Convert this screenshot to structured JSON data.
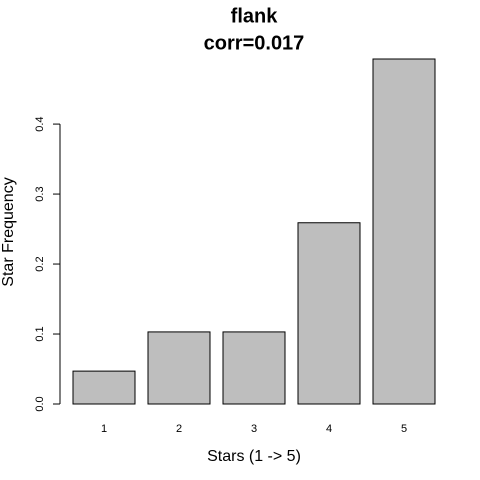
{
  "chart_data": {
    "type": "bar",
    "title": "flank",
    "subtitle": "corr=0.017",
    "x_label": "Stars (1 -> 5)",
    "y_label": "Star Frequency",
    "categories": [
      "1",
      "2",
      "3",
      "4",
      "5"
    ],
    "values": [
      0.047,
      0.103,
      0.103,
      0.259,
      0.493
    ],
    "color": "#bebebe",
    "ylim": [
      0,
      0.493
    ],
    "yticks": [
      {
        "value": 0,
        "label": "0.0"
      },
      0.1,
      0.2,
      0.3,
      0.4
    ]
  }
}
